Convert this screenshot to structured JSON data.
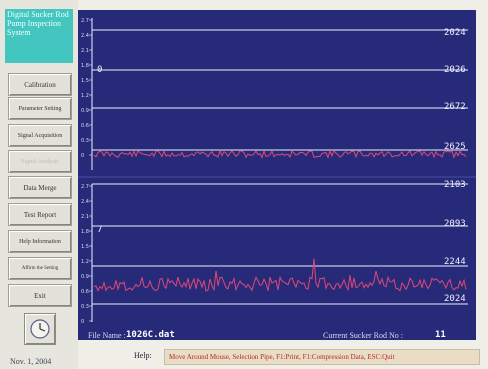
{
  "app": {
    "title": "Digital Sucker Rod Pump Inspection System"
  },
  "sidebar": {
    "buttons": [
      {
        "label": "Calibration",
        "enabled": true
      },
      {
        "label": "Parameter Setting",
        "enabled": true
      },
      {
        "label": "Signal Acquisition",
        "enabled": true
      },
      {
        "label": "Signal Analysis",
        "enabled": false
      },
      {
        "label": "Data Merge",
        "enabled": true
      },
      {
        "label": "Test Report",
        "enabled": true
      },
      {
        "label": "Help Information",
        "enabled": true
      },
      {
        "label": "Affirm the Setting",
        "enabled": true
      },
      {
        "label": "Exit",
        "enabled": true
      }
    ],
    "clock_icon": "clock-icon",
    "date": "Nov. 1, 2004"
  },
  "plot": {
    "upper_axis": [
      "2.7",
      "2.4",
      "2.1",
      "1.8",
      "1.5",
      "1.2",
      "0.9",
      "0.6",
      "0.3",
      "0"
    ],
    "lower_axis": [
      "2.7",
      "2.4",
      "2.1",
      "1.8",
      "1.5",
      "1.2",
      "0.9",
      "0.6",
      "0.3",
      "0"
    ],
    "channels": [
      "2024",
      "2026",
      "2672",
      "2625",
      "2103",
      "2093",
      "2244",
      "2024"
    ],
    "markers": [
      "0",
      "7"
    ],
    "colors": {
      "background": "#262a78",
      "grid": "#eef0ff",
      "trace": "#e04878"
    }
  },
  "footer": {
    "file_name_label": "File Name :",
    "file_name": "1026C.dat",
    "rod_label": "Current Sucker Rod No :",
    "rod_number": "11"
  },
  "status": {
    "help_label": "Help:",
    "help_text": "Move Around Mouse, Selection Pipe, F1:Print, F1:Compression Data, ESC:Quit"
  }
}
